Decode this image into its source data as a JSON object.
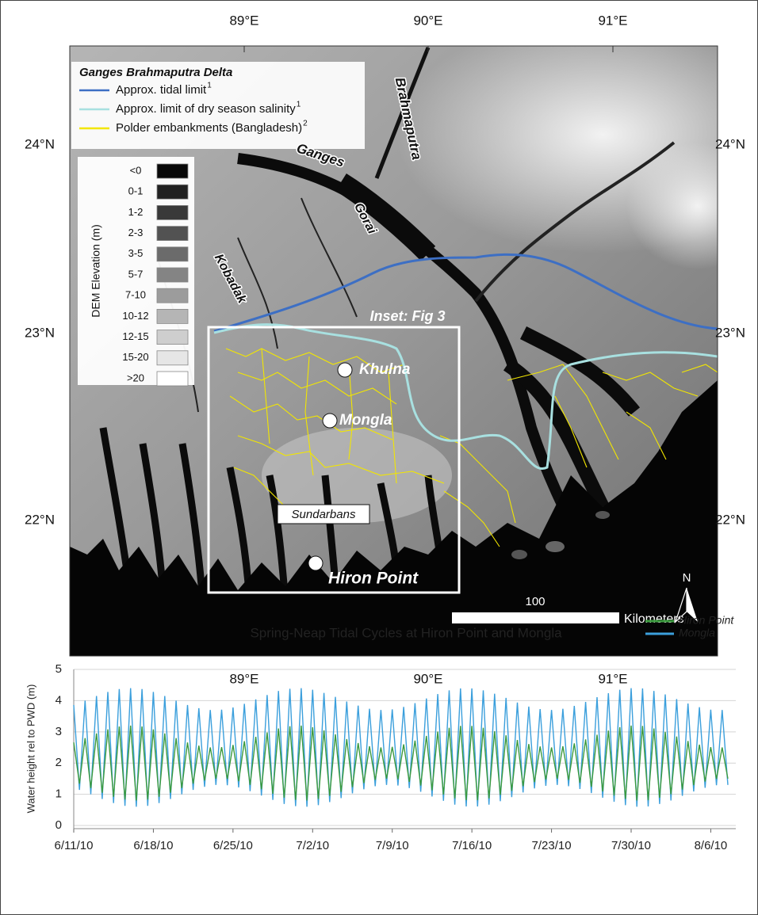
{
  "map": {
    "lon_labels": [
      "89°E",
      "90°E",
      "91°E"
    ],
    "lat_labels": [
      "24°N",
      "23°N",
      "22°N"
    ],
    "legend": {
      "title": "Ganges Brahmaputra Delta",
      "items": [
        {
          "label": "Approx. tidal limit",
          "note": "1",
          "color": "#3d6fc4"
        },
        {
          "label": "Approx. limit of dry season salinity",
          "note": "1",
          "color": "#a8e0e0"
        },
        {
          "label": "Polder embankments (Bangladesh)",
          "note": "2",
          "color": "#f2e600"
        }
      ]
    },
    "dem_legend": {
      "title": "DEM Elevation (m)",
      "classes": [
        "<0",
        "0-1",
        "1-2",
        "2-3",
        "3-5",
        "5-7",
        "7-10",
        "10-12",
        "12-15",
        "15-20",
        ">20"
      ]
    },
    "rivers": [
      "Ganges",
      "Brahmaputra",
      "Gorai",
      "Kobadak"
    ],
    "places": [
      "Khulna",
      "Mongla",
      "Hiron Point"
    ],
    "region": "Sundarbans",
    "inset": "Inset: Fig 3",
    "scale": {
      "distance": 100,
      "unit": "Kilometers"
    },
    "north": "N"
  },
  "chart_data": {
    "type": "line",
    "title": "Spring-Neap Tidal Cycles at Hiron Point and Mongla",
    "y_label": "Water height rel to PWD (m)",
    "x": [
      0,
      0.5,
      1,
      1.5,
      2,
      2.5,
      3,
      3.5,
      4,
      4.5,
      5,
      5.5,
      6,
      6.5,
      7,
      7.5,
      8,
      8.5,
      9,
      9.5,
      10,
      10.5,
      11,
      11.5,
      12,
      12.5,
      13,
      13.5,
      14,
      14.5,
      15,
      15.5,
      16,
      16.5,
      17,
      17.5,
      18,
      18.5,
      19,
      19.5,
      20,
      20.5,
      21,
      21.5,
      22,
      22.5,
      23,
      23.5,
      24,
      24.5,
      25,
      25.5,
      26,
      26.5,
      27,
      27.5,
      28,
      28.5,
      29,
      29.5,
      30,
      30.5,
      31,
      31.5,
      32,
      32.5,
      33,
      33.5,
      34,
      34.5,
      35,
      35.5,
      36,
      36.5,
      37,
      37.5,
      38,
      38.5,
      39,
      39.5,
      40,
      40.5,
      41,
      41.5,
      42,
      42.5,
      43,
      43.5,
      44,
      44.5,
      45,
      45.5,
      46,
      46.5,
      47,
      47.5,
      48,
      48.5,
      49,
      49.5,
      50,
      50.5,
      51,
      51.5,
      52,
      52.5,
      53,
      53.5,
      54,
      54.5,
      55,
      55.5,
      56,
      56.5,
      57,
      57.5
    ],
    "series": [
      {
        "name": "Hiron Point",
        "color": "#3c9a3f",
        "values": [
          2.66,
          1.34,
          2.8,
          1.2,
          2.95,
          1.05,
          3.08,
          0.92,
          3.17,
          0.83,
          3.2,
          0.8,
          3.17,
          0.83,
          3.08,
          0.92,
          2.95,
          1.05,
          2.8,
          1.2,
          2.66,
          1.34,
          2.56,
          1.44,
          2.5,
          1.5,
          2.51,
          1.49,
          2.58,
          1.42,
          2.7,
          1.3,
          2.84,
          1.16,
          2.98,
          1.02,
          3.11,
          0.89,
          3.18,
          0.82,
          3.2,
          0.8,
          3.15,
          0.85,
          3.05,
          0.95,
          2.92,
          1.08,
          2.77,
          1.23,
          2.64,
          1.36,
          2.54,
          1.46,
          2.5,
          1.5,
          2.52,
          1.48,
          2.6,
          1.4,
          2.72,
          1.28,
          2.87,
          1.13,
          3.01,
          0.99,
          3.13,
          0.87,
          3.19,
          0.81,
          3.19,
          0.81,
          3.13,
          0.87,
          3.02,
          0.98,
          2.89,
          1.11,
          2.74,
          1.26,
          2.61,
          1.39,
          2.53,
          1.47,
          2.5,
          1.5,
          2.54,
          1.46,
          2.63,
          1.37,
          2.76,
          1.24,
          2.91,
          1.09,
          3.04,
          0.96,
          3.15,
          0.85,
          3.2,
          0.8,
          3.19,
          0.81,
          3.11,
          0.89,
          3.0,
          1.0,
          2.85,
          1.15,
          2.71,
          1.29,
          2.59,
          1.41,
          2.51,
          1.49,
          2.5,
          1.5
        ]
      },
      {
        "name": "Mongla",
        "color": "#3b9fdc",
        "values": [
          3.86,
          1.14,
          4.0,
          1.0,
          4.15,
          0.85,
          4.28,
          0.72,
          4.37,
          0.63,
          4.4,
          0.6,
          4.37,
          0.63,
          4.28,
          0.72,
          4.15,
          0.85,
          4.0,
          1.0,
          3.86,
          1.14,
          3.76,
          1.24,
          3.7,
          1.3,
          3.71,
          1.29,
          3.78,
          1.22,
          3.9,
          1.1,
          4.04,
          0.96,
          4.18,
          0.82,
          4.31,
          0.69,
          4.38,
          0.62,
          4.4,
          0.6,
          4.35,
          0.65,
          4.25,
          0.75,
          4.12,
          0.88,
          3.97,
          1.03,
          3.84,
          1.16,
          3.74,
          1.26,
          3.7,
          1.3,
          3.72,
          1.28,
          3.8,
          1.2,
          3.92,
          1.08,
          4.07,
          0.93,
          4.21,
          0.79,
          4.33,
          0.67,
          4.39,
          0.61,
          4.39,
          0.61,
          4.33,
          0.67,
          4.22,
          0.78,
          4.09,
          0.91,
          3.94,
          1.06,
          3.81,
          1.19,
          3.73,
          1.27,
          3.7,
          1.3,
          3.74,
          1.26,
          3.83,
          1.17,
          3.96,
          1.04,
          4.11,
          0.89,
          4.24,
          0.76,
          4.35,
          0.65,
          4.4,
          0.6,
          4.39,
          0.61,
          4.31,
          0.69,
          4.2,
          0.8,
          4.05,
          0.95,
          3.91,
          1.09,
          3.79,
          1.21,
          3.71,
          1.29,
          3.7,
          1.3
        ]
      }
    ],
    "xlim": [
      0,
      58.2
    ],
    "xticks": [
      {
        "value": 0,
        "label": "6/11/10"
      },
      {
        "value": 7,
        "label": "6/18/10"
      },
      {
        "value": 14,
        "label": "6/25/10"
      },
      {
        "value": 21,
        "label": "7/2/10"
      },
      {
        "value": 28,
        "label": "7/9/10"
      },
      {
        "value": 35,
        "label": "7/16/10"
      },
      {
        "value": 42,
        "label": "7/23/10"
      },
      {
        "value": 49,
        "label": "7/30/10"
      },
      {
        "value": 56,
        "label": "8/6/10"
      }
    ],
    "ylim": [
      -0.1,
      5
    ],
    "yticks": [
      0,
      1,
      2,
      3,
      4,
      5
    ],
    "grid": true
  }
}
